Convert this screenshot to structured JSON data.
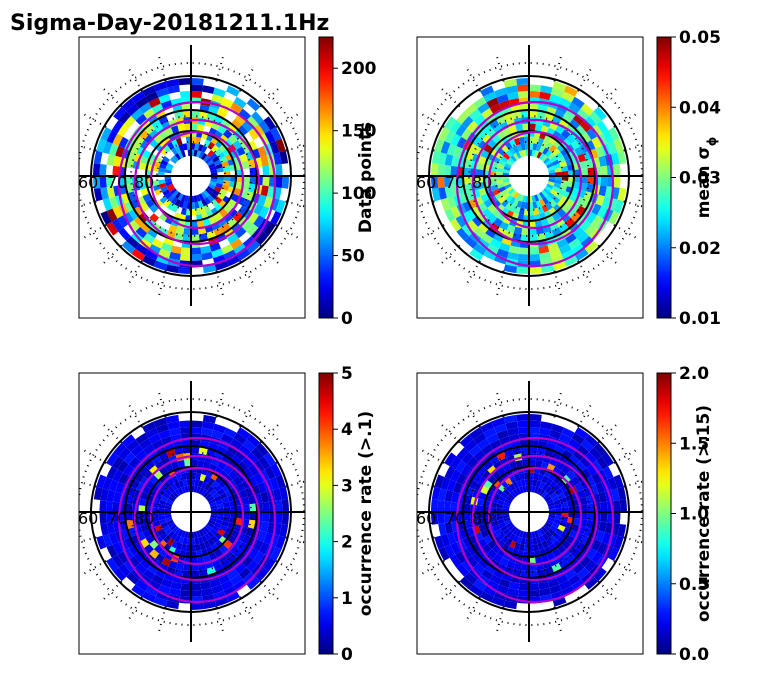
{
  "title": "Sigma-Day-20181211.1Hz",
  "panels": [
    {
      "id": "data-points",
      "colorbar_label": "Data points",
      "ticks": [
        "0",
        "50",
        "100",
        "150",
        "200"
      ],
      "tick_values": [
        0,
        50,
        100,
        150,
        200
      ],
      "vmin": 0,
      "vmax": 225,
      "lat_labels": [
        "60",
        "70",
        "80"
      ],
      "kind": "sparse"
    },
    {
      "id": "mean-sigma",
      "colorbar_label": "mean σ",
      "colorbar_sub": "ϕ",
      "ticks": [
        "0.01",
        "0.02",
        "0.03",
        "0.04",
        "0.05"
      ],
      "tick_values": [
        0.01,
        0.02,
        0.03,
        0.04,
        0.05
      ],
      "vmin": 0.01,
      "vmax": 0.05,
      "lat_labels": [
        "60",
        "70",
        "80"
      ],
      "kind": "full"
    },
    {
      "id": "occurrence-01",
      "colorbar_label": "occurrence rate (>.1)",
      "ticks": [
        "0",
        "1",
        "2",
        "3",
        "4",
        "5"
      ],
      "tick_values": [
        0,
        1,
        2,
        3,
        4,
        5
      ],
      "vmin": 0,
      "vmax": 5,
      "lat_labels": [
        "60",
        "70",
        "80"
      ],
      "kind": "low"
    },
    {
      "id": "occurrence-015",
      "colorbar_label": "occurrence rate (>.15)",
      "ticks": [
        "0.0",
        "0.5",
        "1.0",
        "1.5",
        "2.0"
      ],
      "tick_values": [
        0,
        0.5,
        1,
        1.5,
        2
      ],
      "vmin": 0,
      "vmax": 2,
      "lat_labels": [
        "60",
        "70",
        "80"
      ],
      "kind": "low2"
    }
  ],
  "colors": {
    "contour": "#b400c8",
    "grid": "#000000"
  },
  "chart_data": {
    "type": "heatmap",
    "title": "Sigma-Day-20181211.1Hz",
    "projection": "polar (magnetic latitude 60–90°)",
    "colormap": "jet",
    "subplots": [
      {
        "colorbar": "Data points",
        "range": [
          0,
          225
        ]
      },
      {
        "colorbar": "mean σϕ",
        "range": [
          0.01,
          0.05
        ]
      },
      {
        "colorbar": "occurrence rate (>.1)",
        "range": [
          0,
          5
        ]
      },
      {
        "colorbar": "occurrence rate (>.15)",
        "range": [
          0,
          2
        ]
      }
    ]
  }
}
